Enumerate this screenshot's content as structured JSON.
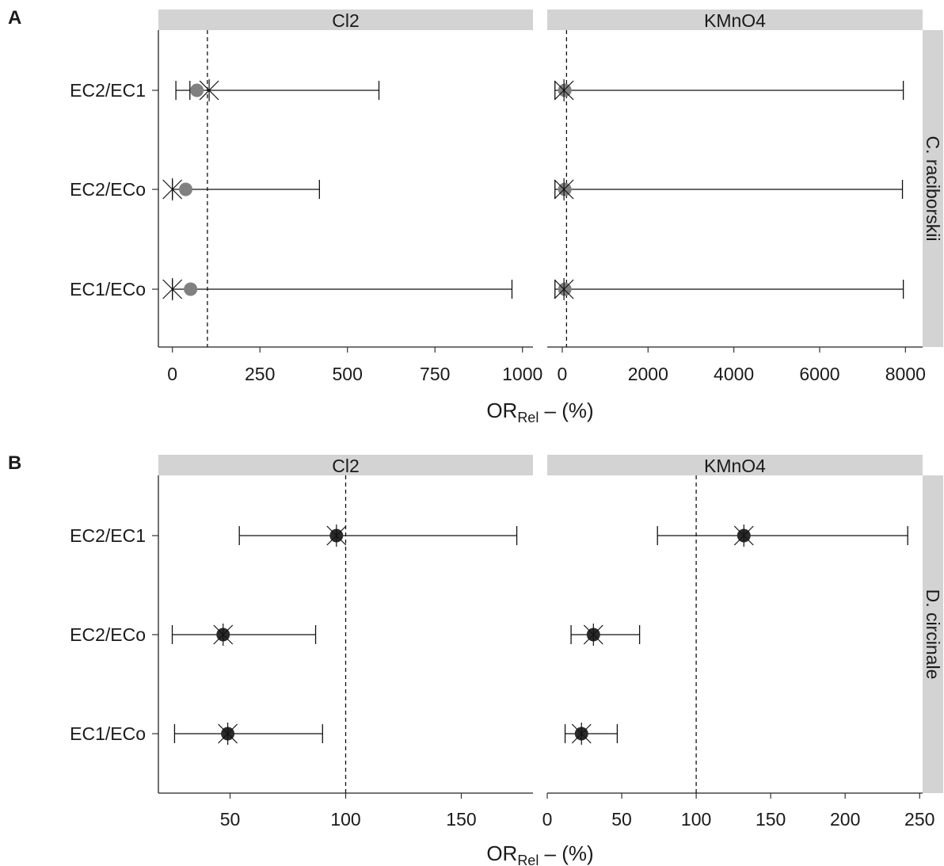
{
  "chart_data": [
    {
      "type": "forest",
      "panel_label": "A",
      "row_label": "C. raciborskii",
      "categories": [
        "EC2/EC1",
        "EC2/ECo",
        "EC1/ECo"
      ],
      "xlabel": {
        "main": "OR",
        "sub": "Rel",
        "suffix": " – (%)"
      },
      "facets": [
        {
          "name": "Cl2",
          "xlim": [
            -40,
            1030
          ],
          "ticks": [
            0,
            250,
            500,
            750,
            1000
          ],
          "ref_line": 100,
          "dot_color": "#808080",
          "points": [
            {
              "category": "EC2/EC1",
              "lower": 10,
              "upper": 590,
              "estimate": 70,
              "median": 105,
              "median_low": 50
            },
            {
              "category": "EC2/ECo",
              "lower": 0,
              "upper": 420,
              "estimate": 38,
              "median": 0,
              "median_low": 0
            },
            {
              "category": "EC1/ECo",
              "lower": 0,
              "upper": 970,
              "estimate": 52,
              "median": 0,
              "median_low": 0
            }
          ]
        },
        {
          "name": "KMnO4",
          "xlim": [
            -350,
            8400
          ],
          "ticks": [
            0,
            2000,
            4000,
            6000,
            8000
          ],
          "tick_labels": [
            "0",
            "2000",
            "4000",
            "6000",
            "8000"
          ],
          "ref_line": 100,
          "dot_color": "#808080",
          "points": [
            {
              "category": "EC2/EC1",
              "lower": -170,
              "upper": 7950,
              "estimate": 60,
              "median": 40
            },
            {
              "category": "EC2/ECo",
              "lower": -170,
              "upper": 7930,
              "estimate": 60,
              "median": 40
            },
            {
              "category": "EC1/ECo",
              "lower": -170,
              "upper": 7950,
              "estimate": 60,
              "median": 40
            }
          ]
        }
      ]
    },
    {
      "type": "forest",
      "panel_label": "B",
      "row_label": "D. circinale",
      "categories": [
        "EC2/EC1",
        "EC2/ECo",
        "EC1/ECo"
      ],
      "xlabel": {
        "main": "OR",
        "sub": "Rel",
        "suffix": " – (%)"
      },
      "facets": [
        {
          "name": "Cl2",
          "xlim": [
            19,
            181
          ],
          "ticks": [
            50,
            100,
            150
          ],
          "ref_line": 100,
          "dot_color": "#2a2a2a",
          "points": [
            {
              "category": "EC2/EC1",
              "lower": 54,
              "upper": 174,
              "estimate": 96,
              "median": 96
            },
            {
              "category": "EC2/ECo",
              "lower": 25,
              "upper": 87,
              "estimate": 47,
              "median": 47
            },
            {
              "category": "EC1/ECo",
              "lower": 26,
              "upper": 90,
              "estimate": 49,
              "median": 49
            }
          ]
        },
        {
          "name": "KMnO4",
          "xlim": [
            0,
            252
          ],
          "ticks": [
            0,
            50,
            100,
            150,
            200,
            250
          ],
          "ref_line": 100,
          "dot_color": "#2a2a2a",
          "points": [
            {
              "category": "EC2/EC1",
              "lower": 74,
              "upper": 242,
              "estimate": 132,
              "median": 132
            },
            {
              "category": "EC2/ECo",
              "lower": 16,
              "upper": 62,
              "estimate": 31,
              "median": 31
            },
            {
              "category": "EC1/ECo",
              "lower": 12,
              "upper": 47,
              "estimate": 23,
              "median": 23
            }
          ]
        }
      ]
    }
  ]
}
